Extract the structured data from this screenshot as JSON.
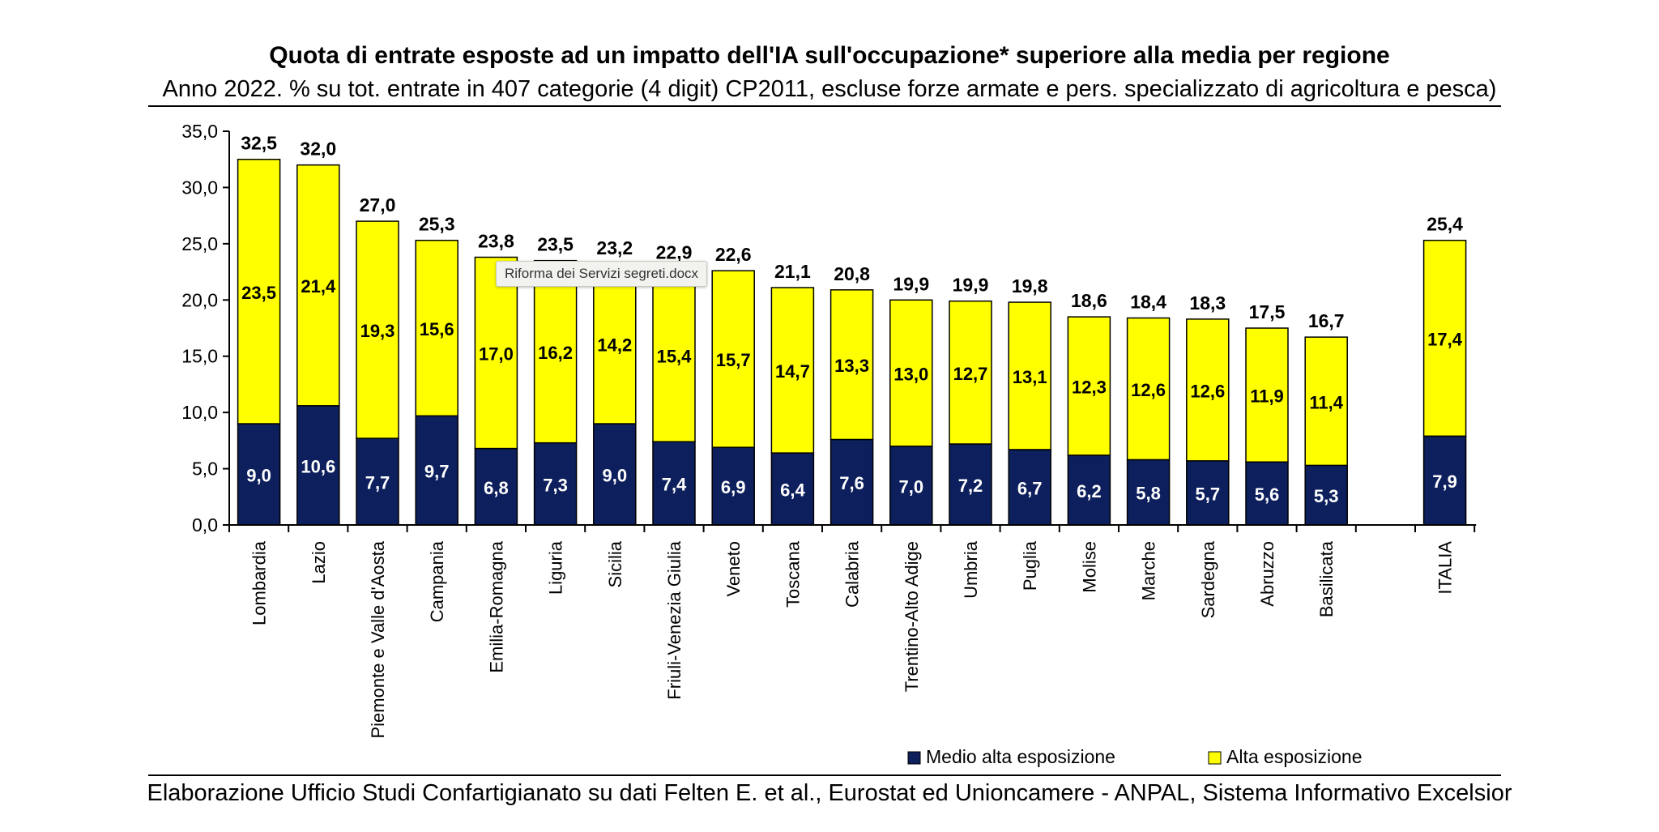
{
  "title": "Quota di entrate esposte ad un impatto dell'IA sull'occupazione* superiore alla media per regione",
  "subtitle": "Anno 2022. % su tot. entrate in 407 categorie (4 digit) CP2011, escluse forze armate e pers. specializzato di agricoltura e pesca)",
  "source": "Elaborazione Ufficio Studi Confartigianato su dati Felten E. et al., Eurostat ed Unioncamere - ANPAL, Sistema Informativo Excelsior",
  "tooltip": "Riforma dei Servizi segreti.docx",
  "colors": {
    "medio_alta": "#0d1f5c",
    "alta": "#ffff00",
    "axis": "#000000"
  },
  "chart_data": {
    "type": "bar",
    "stacked": true,
    "categories": [
      "Lombardia",
      "Lazio",
      "Piemonte e Valle d'Aosta",
      "Campania",
      "Emilia-Romagna",
      "Liguria",
      "Sicilia",
      "Friuli-Venezia Giulia",
      "Veneto",
      "Toscana",
      "Calabria",
      "Trentino-Alto Adige",
      "Umbria",
      "Puglia",
      "Molise",
      "Marche",
      "Sardegna",
      "Abruzzo",
      "Basilicata",
      "",
      "ITALIA"
    ],
    "series": [
      {
        "name": "Medio alta esposizione",
        "color": "#0d1f5c",
        "values": [
          9.0,
          10.6,
          7.7,
          9.7,
          6.8,
          7.3,
          9.0,
          7.4,
          6.9,
          6.4,
          7.6,
          7.0,
          7.2,
          6.7,
          6.2,
          5.8,
          5.7,
          5.6,
          5.3,
          null,
          7.9
        ],
        "labels": [
          "9,0",
          "10,6",
          "7,7",
          "9,7",
          "6,8",
          "7,3",
          "9,0",
          "7,4",
          "6,9",
          "6,4",
          "7,6",
          "7,0",
          "7,2",
          "6,7",
          "6,2",
          "5,8",
          "5,7",
          "5,6",
          "5,3",
          "",
          "7,9"
        ]
      },
      {
        "name": "Alta esposizione",
        "color": "#ffff00",
        "values": [
          23.5,
          21.4,
          19.3,
          15.6,
          17.0,
          16.2,
          14.2,
          15.4,
          15.7,
          14.7,
          13.3,
          13.0,
          12.7,
          13.1,
          12.3,
          12.6,
          12.6,
          11.9,
          11.4,
          null,
          17.4
        ],
        "labels": [
          "23,5",
          "21,4",
          "19,3",
          "15,6",
          "17,0",
          "16,2",
          "14,2",
          "15,4",
          "15,7",
          "14,7",
          "13,3",
          "13,0",
          "12,7",
          "13,1",
          "12,3",
          "12,6",
          "12,6",
          "11,9",
          "11,4",
          "",
          "17,4"
        ]
      }
    ],
    "totals": [
      32.5,
      32.0,
      27.0,
      25.3,
      23.8,
      23.5,
      23.2,
      22.9,
      22.6,
      21.1,
      20.8,
      19.9,
      19.9,
      19.8,
      18.6,
      18.4,
      18.3,
      17.5,
      16.7,
      null,
      25.4
    ],
    "total_labels": [
      "32,5",
      "32,0",
      "27,0",
      "25,3",
      "23,8",
      "23,5",
      "23,2",
      "22,9",
      "22,6",
      "21,1",
      "20,8",
      "19,9",
      "19,9",
      "19,8",
      "18,6",
      "18,4",
      "18,3",
      "17,5",
      "16,7",
      "",
      "25,4"
    ],
    "ylim": [
      0,
      35
    ],
    "yticks": [
      0,
      5,
      10,
      15,
      20,
      25,
      30,
      35
    ],
    "ytick_labels": [
      "0,0",
      "5,0",
      "10,0",
      "15,0",
      "20,0",
      "25,0",
      "30,0",
      "35,0"
    ],
    "grid": false,
    "legend": "bottom-right"
  }
}
